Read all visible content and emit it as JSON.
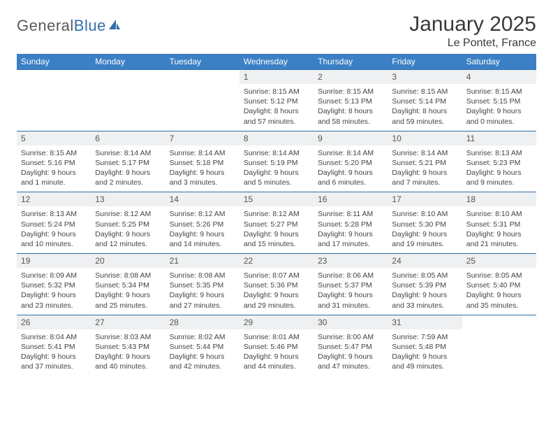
{
  "brand": {
    "part1": "General",
    "part2": "Blue"
  },
  "title": "January 2025",
  "location": "Le Pontet, France",
  "colors": {
    "header_bg": "#3b7fc4",
    "header_text": "#ffffff",
    "daynum_bg": "#eef0f1",
    "border": "#2f6fa8",
    "text": "#444444",
    "logo_gray": "#5a5a5a",
    "logo_blue": "#2f6fa8"
  },
  "weekdays": [
    "Sunday",
    "Monday",
    "Tuesday",
    "Wednesday",
    "Thursday",
    "Friday",
    "Saturday"
  ],
  "weeks": [
    [
      {},
      {},
      {},
      {
        "n": "1",
        "sr": "Sunrise: 8:15 AM",
        "ss": "Sunset: 5:12 PM",
        "d1": "Daylight: 8 hours",
        "d2": "and 57 minutes."
      },
      {
        "n": "2",
        "sr": "Sunrise: 8:15 AM",
        "ss": "Sunset: 5:13 PM",
        "d1": "Daylight: 8 hours",
        "d2": "and 58 minutes."
      },
      {
        "n": "3",
        "sr": "Sunrise: 8:15 AM",
        "ss": "Sunset: 5:14 PM",
        "d1": "Daylight: 8 hours",
        "d2": "and 59 minutes."
      },
      {
        "n": "4",
        "sr": "Sunrise: 8:15 AM",
        "ss": "Sunset: 5:15 PM",
        "d1": "Daylight: 9 hours",
        "d2": "and 0 minutes."
      }
    ],
    [
      {
        "n": "5",
        "sr": "Sunrise: 8:15 AM",
        "ss": "Sunset: 5:16 PM",
        "d1": "Daylight: 9 hours",
        "d2": "and 1 minute."
      },
      {
        "n": "6",
        "sr": "Sunrise: 8:14 AM",
        "ss": "Sunset: 5:17 PM",
        "d1": "Daylight: 9 hours",
        "d2": "and 2 minutes."
      },
      {
        "n": "7",
        "sr": "Sunrise: 8:14 AM",
        "ss": "Sunset: 5:18 PM",
        "d1": "Daylight: 9 hours",
        "d2": "and 3 minutes."
      },
      {
        "n": "8",
        "sr": "Sunrise: 8:14 AM",
        "ss": "Sunset: 5:19 PM",
        "d1": "Daylight: 9 hours",
        "d2": "and 5 minutes."
      },
      {
        "n": "9",
        "sr": "Sunrise: 8:14 AM",
        "ss": "Sunset: 5:20 PM",
        "d1": "Daylight: 9 hours",
        "d2": "and 6 minutes."
      },
      {
        "n": "10",
        "sr": "Sunrise: 8:14 AM",
        "ss": "Sunset: 5:21 PM",
        "d1": "Daylight: 9 hours",
        "d2": "and 7 minutes."
      },
      {
        "n": "11",
        "sr": "Sunrise: 8:13 AM",
        "ss": "Sunset: 5:23 PM",
        "d1": "Daylight: 9 hours",
        "d2": "and 9 minutes."
      }
    ],
    [
      {
        "n": "12",
        "sr": "Sunrise: 8:13 AM",
        "ss": "Sunset: 5:24 PM",
        "d1": "Daylight: 9 hours",
        "d2": "and 10 minutes."
      },
      {
        "n": "13",
        "sr": "Sunrise: 8:12 AM",
        "ss": "Sunset: 5:25 PM",
        "d1": "Daylight: 9 hours",
        "d2": "and 12 minutes."
      },
      {
        "n": "14",
        "sr": "Sunrise: 8:12 AM",
        "ss": "Sunset: 5:26 PM",
        "d1": "Daylight: 9 hours",
        "d2": "and 14 minutes."
      },
      {
        "n": "15",
        "sr": "Sunrise: 8:12 AM",
        "ss": "Sunset: 5:27 PM",
        "d1": "Daylight: 9 hours",
        "d2": "and 15 minutes."
      },
      {
        "n": "16",
        "sr": "Sunrise: 8:11 AM",
        "ss": "Sunset: 5:28 PM",
        "d1": "Daylight: 9 hours",
        "d2": "and 17 minutes."
      },
      {
        "n": "17",
        "sr": "Sunrise: 8:10 AM",
        "ss": "Sunset: 5:30 PM",
        "d1": "Daylight: 9 hours",
        "d2": "and 19 minutes."
      },
      {
        "n": "18",
        "sr": "Sunrise: 8:10 AM",
        "ss": "Sunset: 5:31 PM",
        "d1": "Daylight: 9 hours",
        "d2": "and 21 minutes."
      }
    ],
    [
      {
        "n": "19",
        "sr": "Sunrise: 8:09 AM",
        "ss": "Sunset: 5:32 PM",
        "d1": "Daylight: 9 hours",
        "d2": "and 23 minutes."
      },
      {
        "n": "20",
        "sr": "Sunrise: 8:08 AM",
        "ss": "Sunset: 5:34 PM",
        "d1": "Daylight: 9 hours",
        "d2": "and 25 minutes."
      },
      {
        "n": "21",
        "sr": "Sunrise: 8:08 AM",
        "ss": "Sunset: 5:35 PM",
        "d1": "Daylight: 9 hours",
        "d2": "and 27 minutes."
      },
      {
        "n": "22",
        "sr": "Sunrise: 8:07 AM",
        "ss": "Sunset: 5:36 PM",
        "d1": "Daylight: 9 hours",
        "d2": "and 29 minutes."
      },
      {
        "n": "23",
        "sr": "Sunrise: 8:06 AM",
        "ss": "Sunset: 5:37 PM",
        "d1": "Daylight: 9 hours",
        "d2": "and 31 minutes."
      },
      {
        "n": "24",
        "sr": "Sunrise: 8:05 AM",
        "ss": "Sunset: 5:39 PM",
        "d1": "Daylight: 9 hours",
        "d2": "and 33 minutes."
      },
      {
        "n": "25",
        "sr": "Sunrise: 8:05 AM",
        "ss": "Sunset: 5:40 PM",
        "d1": "Daylight: 9 hours",
        "d2": "and 35 minutes."
      }
    ],
    [
      {
        "n": "26",
        "sr": "Sunrise: 8:04 AM",
        "ss": "Sunset: 5:41 PM",
        "d1": "Daylight: 9 hours",
        "d2": "and 37 minutes."
      },
      {
        "n": "27",
        "sr": "Sunrise: 8:03 AM",
        "ss": "Sunset: 5:43 PM",
        "d1": "Daylight: 9 hours",
        "d2": "and 40 minutes."
      },
      {
        "n": "28",
        "sr": "Sunrise: 8:02 AM",
        "ss": "Sunset: 5:44 PM",
        "d1": "Daylight: 9 hours",
        "d2": "and 42 minutes."
      },
      {
        "n": "29",
        "sr": "Sunrise: 8:01 AM",
        "ss": "Sunset: 5:46 PM",
        "d1": "Daylight: 9 hours",
        "d2": "and 44 minutes."
      },
      {
        "n": "30",
        "sr": "Sunrise: 8:00 AM",
        "ss": "Sunset: 5:47 PM",
        "d1": "Daylight: 9 hours",
        "d2": "and 47 minutes."
      },
      {
        "n": "31",
        "sr": "Sunrise: 7:59 AM",
        "ss": "Sunset: 5:48 PM",
        "d1": "Daylight: 9 hours",
        "d2": "and 49 minutes."
      },
      {}
    ]
  ]
}
